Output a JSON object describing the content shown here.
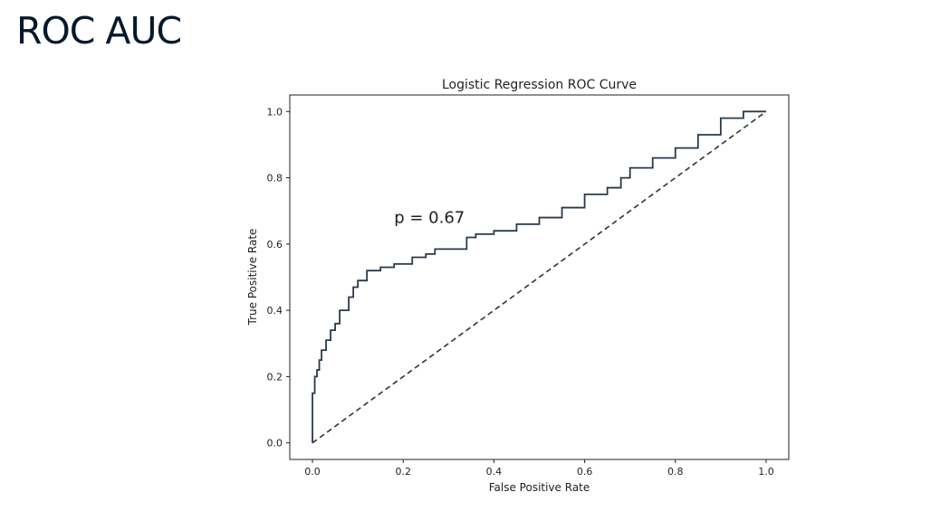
{
  "slide": {
    "title": "ROC AUC"
  },
  "colors": {
    "title": "#05192d",
    "roc_curve": "#2b3a4a",
    "diagonal": "#333333"
  },
  "chart_data": {
    "type": "line",
    "title": "Logistic Regression ROC Curve",
    "xlabel": "False Positive Rate",
    "ylabel": "True Positive Rate",
    "xlim": [
      -0.05,
      1.05
    ],
    "ylim": [
      -0.05,
      1.05
    ],
    "xticks": [
      0.0,
      0.2,
      0.4,
      0.6,
      0.8,
      1.0
    ],
    "yticks": [
      0.0,
      0.2,
      0.4,
      0.6,
      0.8,
      1.0
    ],
    "xtick_labels": [
      "0.0",
      "0.2",
      "0.4",
      "0.6",
      "0.8",
      "1.0"
    ],
    "ytick_labels": [
      "0.0",
      "0.2",
      "0.4",
      "0.6",
      "0.8",
      "1.0"
    ],
    "grid": false,
    "annotations": [
      {
        "text": "p = 0.67",
        "x": 0.18,
        "y": 0.68
      }
    ],
    "series": [
      {
        "style": "solid",
        "x": [
          0.0,
          0.0,
          0.005,
          0.01,
          0.015,
          0.02,
          0.03,
          0.04,
          0.05,
          0.06,
          0.08,
          0.09,
          0.1,
          0.12,
          0.15,
          0.18,
          0.22,
          0.25,
          0.27,
          0.3,
          0.34,
          0.36,
          0.4,
          0.45,
          0.5,
          0.55,
          0.6,
          0.65,
          0.68,
          0.7,
          0.75,
          0.8,
          0.85,
          0.9,
          0.95,
          1.0
        ],
        "y": [
          0.0,
          0.1,
          0.15,
          0.2,
          0.22,
          0.25,
          0.28,
          0.31,
          0.34,
          0.36,
          0.4,
          0.44,
          0.47,
          0.49,
          0.52,
          0.53,
          0.54,
          0.56,
          0.57,
          0.585,
          0.585,
          0.62,
          0.63,
          0.64,
          0.66,
          0.68,
          0.71,
          0.75,
          0.77,
          0.8,
          0.83,
          0.86,
          0.89,
          0.93,
          0.98,
          1.0
        ]
      },
      {
        "style": "dashed",
        "x": [
          0.0,
          1.0
        ],
        "y": [
          0.0,
          1.0
        ]
      }
    ]
  }
}
